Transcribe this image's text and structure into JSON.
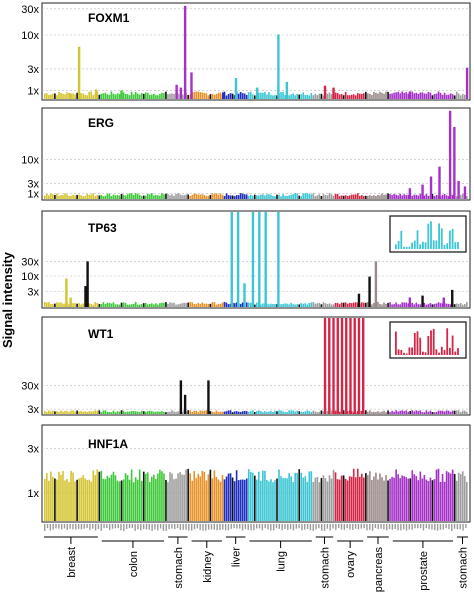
{
  "figure": {
    "ylabel": "Signal intensity"
  },
  "palette": {
    "breast": "#d4c433",
    "colon": "#3ec93a",
    "stomach": "#9e9e9e",
    "kidney": "#e8932a",
    "liver": "#1f2fbf",
    "lung": "#3cc6d4",
    "ovary": "#d42646",
    "pancreas": "#9b8a8a",
    "prostate": "#a531c8",
    "separator": "#111111"
  },
  "chart_data": [
    {
      "type": "bar",
      "title": "FOXM1",
      "yticks": [
        "30x",
        "10x",
        "3x",
        "1x"
      ],
      "inset": false,
      "baseline_level": 0.06,
      "peaks": [
        {
          "tissue": "breast",
          "pos": 0.08,
          "level": 0.55
        },
        {
          "tissue": "breast",
          "pos": 0.06,
          "level": 0.06
        },
        {
          "tissue": "breast",
          "pos": 0.12,
          "level": 0.1
        },
        {
          "tissue": "colon",
          "pos": 0.18,
          "level": 0.09
        },
        {
          "tissue": "prostate",
          "pos": 0.33,
          "level": 0.98
        },
        {
          "tissue": "prostate",
          "pos": 0.345,
          "level": 0.28
        },
        {
          "tissue": "prostate",
          "pos": 0.31,
          "level": 0.15
        },
        {
          "tissue": "prostate",
          "pos": 0.32,
          "level": 0.12
        },
        {
          "tissue": "liver",
          "pos": 0.42,
          "level": 0.07
        },
        {
          "tissue": "lung",
          "pos": 0.45,
          "level": 0.22
        },
        {
          "tissue": "lung",
          "pos": 0.55,
          "level": 0.68
        },
        {
          "tissue": "lung",
          "pos": 0.57,
          "level": 0.18
        },
        {
          "tissue": "lung",
          "pos": 0.5,
          "level": 0.12
        },
        {
          "tissue": "ovary",
          "pos": 0.66,
          "level": 0.14
        },
        {
          "tissue": "ovary",
          "pos": 0.68,
          "level": 0.12
        },
        {
          "tissue": "prostate",
          "pos": 0.995,
          "level": 0.33
        },
        {
          "tissue": "prostate",
          "pos": 0.86,
          "level": 0.08
        }
      ]
    },
    {
      "type": "bar",
      "title": "ERG",
      "yticks": [
        "10x",
        "3x",
        "1x"
      ],
      "inset": false,
      "baseline_level": 0.05,
      "peaks": [
        {
          "tissue": "prostate",
          "pos": 0.955,
          "level": 0.98
        },
        {
          "tissue": "prostate",
          "pos": 0.965,
          "level": 0.8
        },
        {
          "tissue": "prostate",
          "pos": 0.93,
          "level": 0.36
        },
        {
          "tissue": "prostate",
          "pos": 0.91,
          "level": 0.25
        },
        {
          "tissue": "prostate",
          "pos": 0.89,
          "level": 0.16
        },
        {
          "tissue": "prostate",
          "pos": 0.86,
          "level": 0.12
        },
        {
          "tissue": "prostate",
          "pos": 0.975,
          "level": 0.2
        },
        {
          "tissue": "prostate",
          "pos": 0.99,
          "level": 0.14
        }
      ]
    },
    {
      "type": "bar",
      "title": "TP63",
      "yticks": [
        "30x",
        "10x",
        "3x"
      ],
      "inset": true,
      "inset_tissue": "lung",
      "baseline_level": 0.04,
      "peaks": [
        {
          "tissue": "breast",
          "pos": 0.05,
          "level": 0.3
        },
        {
          "tissue": "breast",
          "pos": 0.06,
          "level": 0.1
        },
        {
          "tissue": "separator",
          "pos": 0.1,
          "level": 0.48
        },
        {
          "tissue": "separator",
          "pos": 0.095,
          "level": 0.22
        },
        {
          "tissue": "lung",
          "pos": 0.44,
          "level": 1.0
        },
        {
          "tissue": "lung",
          "pos": 0.455,
          "level": 1.0
        },
        {
          "tissue": "lung",
          "pos": 0.49,
          "level": 1.0
        },
        {
          "tissue": "lung",
          "pos": 0.505,
          "level": 1.0
        },
        {
          "tissue": "lung",
          "pos": 0.52,
          "level": 1.0
        },
        {
          "tissue": "lung",
          "pos": 0.55,
          "level": 1.0
        },
        {
          "tissue": "lung",
          "pos": 0.47,
          "level": 0.25
        },
        {
          "tissue": "pancreas",
          "pos": 0.78,
          "level": 0.48
        },
        {
          "tissue": "separator",
          "pos": 0.765,
          "level": 0.32
        },
        {
          "tissue": "separator",
          "pos": 0.74,
          "level": 0.14
        },
        {
          "tissue": "prostate",
          "pos": 0.86,
          "level": 0.1
        },
        {
          "tissue": "separator",
          "pos": 0.89,
          "level": 0.12
        },
        {
          "tissue": "prostate",
          "pos": 0.94,
          "level": 0.1
        },
        {
          "tissue": "separator",
          "pos": 0.96,
          "level": 0.18
        }
      ]
    },
    {
      "type": "bar",
      "title": "WT1",
      "yticks": [
        "30x",
        "3x"
      ],
      "inset": true,
      "inset_tissue": "ovary",
      "baseline_level": 0.03,
      "peaks": [
        {
          "tissue": "separator",
          "pos": 0.32,
          "level": 0.35
        },
        {
          "tissue": "separator",
          "pos": 0.385,
          "level": 0.35
        },
        {
          "tissue": "separator",
          "pos": 0.33,
          "level": 0.2
        },
        {
          "tissue": "ovary",
          "pos": 0.66,
          "level": 1.0
        },
        {
          "tissue": "ovary",
          "pos": 0.67,
          "level": 1.0
        },
        {
          "tissue": "ovary",
          "pos": 0.68,
          "level": 1.0
        },
        {
          "tissue": "ovary",
          "pos": 0.69,
          "level": 1.0
        },
        {
          "tissue": "ovary",
          "pos": 0.7,
          "level": 1.0
        },
        {
          "tissue": "ovary",
          "pos": 0.71,
          "level": 1.0
        },
        {
          "tissue": "ovary",
          "pos": 0.72,
          "level": 1.0
        },
        {
          "tissue": "ovary",
          "pos": 0.73,
          "level": 1.0
        },
        {
          "tissue": "ovary",
          "pos": 0.74,
          "level": 1.0
        },
        {
          "tissue": "ovary",
          "pos": 0.75,
          "level": 1.0
        }
      ]
    },
    {
      "type": "bar",
      "title": "HNF1A",
      "yticks": [
        "3x",
        "1x"
      ],
      "inset": false,
      "baseline_level": 0.47,
      "peaks": []
    }
  ],
  "x_axis": {
    "groups": [
      {
        "label": "breast",
        "start": 0.0,
        "end": 0.135
      },
      {
        "label": "colon",
        "start": 0.135,
        "end": 0.29
      },
      {
        "label": "stomach",
        "start": 0.29,
        "end": 0.345
      },
      {
        "label": "kidney",
        "start": 0.345,
        "end": 0.425
      },
      {
        "label": "liver",
        "start": 0.425,
        "end": 0.48
      },
      {
        "label": "lung",
        "start": 0.48,
        "end": 0.635
      },
      {
        "label": "stomach",
        "start": 0.635,
        "end": 0.685
      },
      {
        "label": "ovary",
        "start": 0.685,
        "end": 0.755
      },
      {
        "label": "pancreas",
        "start": 0.755,
        "end": 0.815
      },
      {
        "label": "prostate",
        "start": 0.815,
        "end": 0.965
      },
      {
        "label": "stomach",
        "start": 0.965,
        "end": 1.0
      }
    ]
  }
}
